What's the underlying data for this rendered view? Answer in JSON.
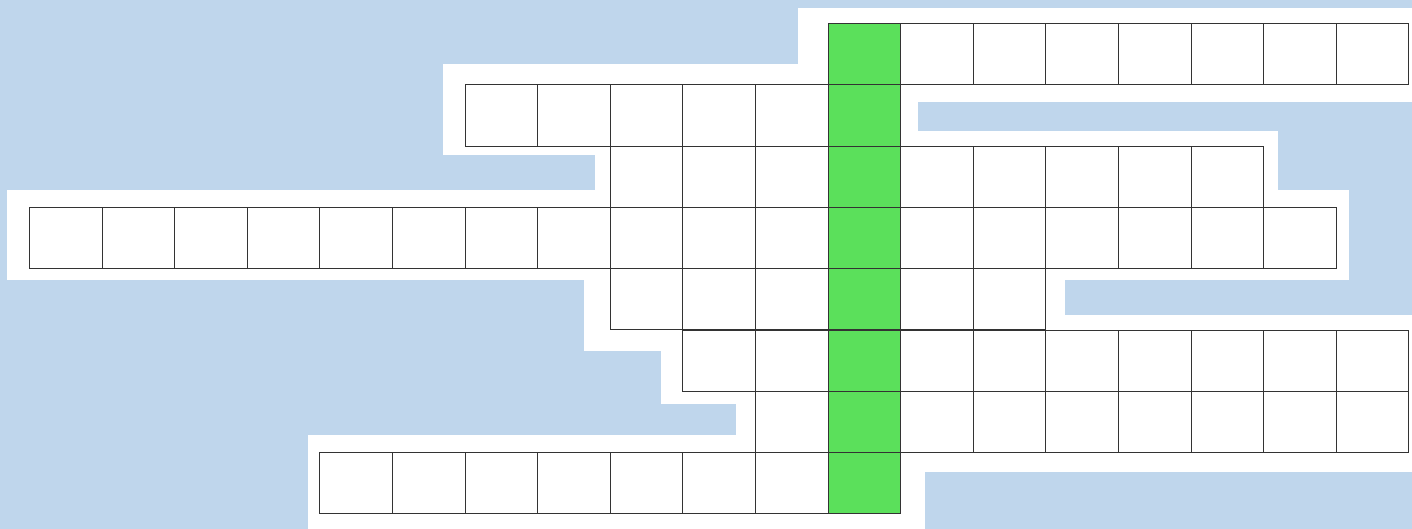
{
  "colors": {
    "background_blue": "#bfd6ec",
    "cell_fill": "#ffffff",
    "cell_border": "#333333",
    "highlight_column": "#5be05b"
  },
  "puzzle": {
    "type": "crossword",
    "highlight_column": 11,
    "rows": [
      {
        "row": 1,
        "start_col": 11,
        "length": 8,
        "letters": [
          "",
          "",
          "",
          "",
          "",
          "",
          "",
          ""
        ]
      },
      {
        "row": 2,
        "start_col": 6,
        "length": 6,
        "letters": [
          "",
          "",
          "",
          "",
          "",
          ""
        ]
      },
      {
        "row": 3,
        "start_col": 8,
        "length": 9,
        "letters": [
          "",
          "",
          "",
          "",
          "",
          "",
          "",
          "",
          ""
        ]
      },
      {
        "row": 4,
        "start_col": 0,
        "length": 18,
        "letters": [
          "",
          "",
          "",
          "",
          "",
          "",
          "",
          "",
          "",
          "",
          "",
          "",
          "",
          "",
          "",
          "",
          "",
          ""
        ]
      },
      {
        "row": 5,
        "start_col": 8,
        "length": 6,
        "letters": [
          "",
          "",
          "",
          "",
          "",
          ""
        ]
      },
      {
        "row": 6,
        "start_col": 9,
        "length": 10,
        "letters": [
          "",
          "",
          "",
          "",
          "",
          "",
          "",
          "",
          "",
          ""
        ]
      },
      {
        "row": 7,
        "start_col": 10,
        "length": 9,
        "letters": [
          "",
          "",
          "",
          "",
          "",
          "",
          "",
          "",
          ""
        ]
      },
      {
        "row": 8,
        "start_col": 4,
        "length": 8,
        "letters": [
          "",
          "",
          "",
          "",
          "",
          "",
          "",
          ""
        ]
      }
    ]
  }
}
